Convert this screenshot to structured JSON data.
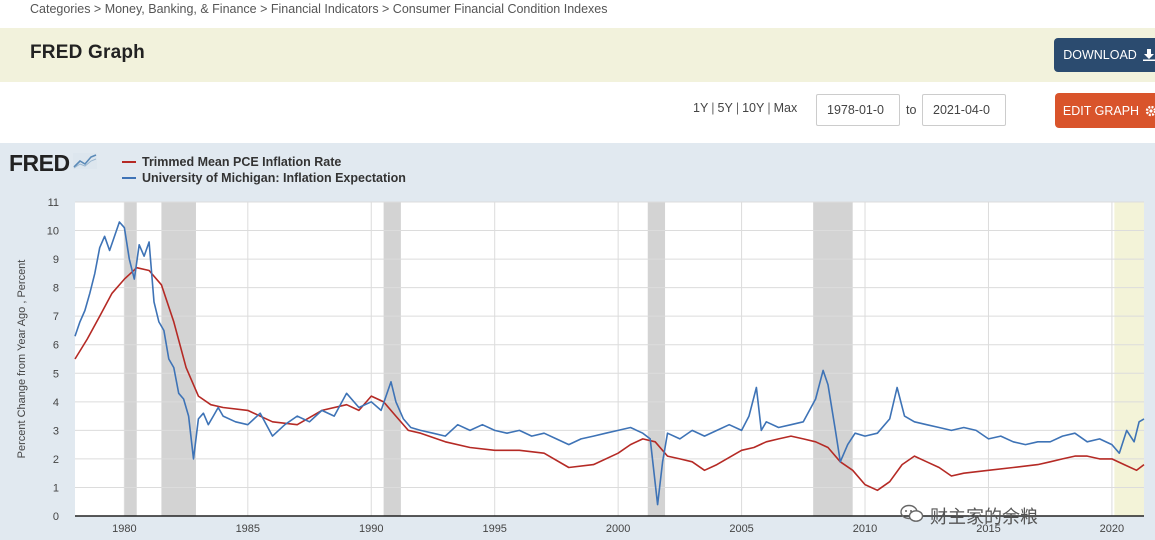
{
  "breadcrumb": "Categories > Money, Banking, & Finance > Financial Indicators > Consumer Financial Condition Indexes",
  "header": {
    "title": "FRED Graph",
    "download_label": "DOWNLOAD",
    "edit_label": "EDIT GRAPH"
  },
  "controls": {
    "range_links": [
      "1Y",
      "5Y",
      "10Y",
      "Max"
    ],
    "start_date": "1978-01-0",
    "to_label": "to",
    "end_date": "2021-04-0"
  },
  "logo": {
    "text": "FRED",
    "icon": "chart-line-icon"
  },
  "watermark": {
    "text": "财主家的余粮",
    "icon": "wechat-icon"
  },
  "colors": {
    "accent_dark": "#2b4b6f",
    "accent_orange": "#d9542b",
    "pce": "#b52a25",
    "michigan": "#3e73b6",
    "recession": "#d3d3d3",
    "highlight": "#f3f3d8"
  },
  "chart_data": {
    "type": "line",
    "ylabel": "Percent Change from Year Ago , Percent",
    "xlabel": "",
    "ylim": [
      0,
      11
    ],
    "xlim": [
      1978.0,
      2021.3
    ],
    "yticks": [
      0,
      1,
      2,
      3,
      4,
      5,
      6,
      7,
      8,
      9,
      10,
      11
    ],
    "xticks": [
      1980,
      1985,
      1990,
      1995,
      2000,
      2005,
      2010,
      2015,
      2020
    ],
    "grid": true,
    "recessions": [
      [
        1980.0,
        1980.5
      ],
      [
        1981.5,
        1982.9
      ],
      [
        1990.5,
        1991.2
      ],
      [
        2001.2,
        2001.9
      ],
      [
        2007.9,
        2009.5
      ],
      [
        2020.1,
        2021.3
      ]
    ],
    "series": [
      {
        "name": "Trimmed Mean PCE Inflation Rate",
        "color": "#b52a25",
        "x": [
          1978.0,
          1978.5,
          1979.0,
          1979.5,
          1980.0,
          1980.5,
          1981.0,
          1981.5,
          1982.0,
          1982.5,
          1983.0,
          1983.5,
          1984.0,
          1985.0,
          1986.0,
          1987.0,
          1988.0,
          1989.0,
          1989.5,
          1990.0,
          1990.5,
          1991.0,
          1991.5,
          1992.0,
          1993.0,
          1994.0,
          1995.0,
          1996.0,
          1997.0,
          1998.0,
          1999.0,
          2000.0,
          2000.5,
          2001.0,
          2001.5,
          2002.0,
          2002.5,
          2003.0,
          2003.5,
          2004.0,
          2005.0,
          2005.5,
          2006.0,
          2006.5,
          2007.0,
          2007.5,
          2008.0,
          2008.5,
          2009.0,
          2009.5,
          2010.0,
          2010.5,
          2011.0,
          2011.5,
          2012.0,
          2012.5,
          2013.0,
          2013.5,
          2014.0,
          2015.0,
          2016.0,
          2017.0,
          2017.5,
          2018.0,
          2018.5,
          2019.0,
          2019.5,
          2020.0,
          2020.5,
          2021.0,
          2021.3
        ],
        "values": [
          5.5,
          6.2,
          7.0,
          7.8,
          8.3,
          8.7,
          8.6,
          8.1,
          6.8,
          5.2,
          4.2,
          3.9,
          3.8,
          3.7,
          3.3,
          3.2,
          3.7,
          3.9,
          3.7,
          4.2,
          4.0,
          3.5,
          3.0,
          2.9,
          2.6,
          2.4,
          2.3,
          2.3,
          2.2,
          1.7,
          1.8,
          2.2,
          2.5,
          2.7,
          2.6,
          2.1,
          2.0,
          1.9,
          1.6,
          1.8,
          2.3,
          2.4,
          2.6,
          2.7,
          2.8,
          2.7,
          2.6,
          2.4,
          1.9,
          1.6,
          1.1,
          0.9,
          1.2,
          1.8,
          2.1,
          1.9,
          1.7,
          1.4,
          1.5,
          1.6,
          1.7,
          1.8,
          1.9,
          2.0,
          2.1,
          2.1,
          2.0,
          2.0,
          1.8,
          1.6,
          1.8
        ]
      },
      {
        "name": "University of Michigan: Inflation Expectation",
        "color": "#3e73b6",
        "x": [
          1978.0,
          1978.2,
          1978.4,
          1978.6,
          1978.8,
          1979.0,
          1979.2,
          1979.4,
          1979.6,
          1979.8,
          1980.0,
          1980.2,
          1980.4,
          1980.6,
          1980.8,
          1981.0,
          1981.2,
          1981.4,
          1981.6,
          1981.8,
          1982.0,
          1982.2,
          1982.4,
          1982.6,
          1982.8,
          1983.0,
          1983.2,
          1983.4,
          1983.6,
          1983.8,
          1984.0,
          1984.5,
          1985.0,
          1985.5,
          1986.0,
          1986.5,
          1987.0,
          1987.5,
          1988.0,
          1988.5,
          1989.0,
          1989.5,
          1990.0,
          1990.4,
          1990.8,
          1991.0,
          1991.3,
          1991.6,
          1992.0,
          1992.5,
          1993.0,
          1993.5,
          1994.0,
          1994.5,
          1995.0,
          1995.5,
          1996.0,
          1996.5,
          1997.0,
          1997.5,
          1998.0,
          1998.5,
          1999.0,
          1999.5,
          2000.0,
          2000.5,
          2001.0,
          2001.3,
          2001.6,
          2001.8,
          2002.0,
          2002.5,
          2003.0,
          2003.5,
          2004.0,
          2004.5,
          2005.0,
          2005.3,
          2005.6,
          2005.8,
          2006.0,
          2006.5,
          2007.0,
          2007.5,
          2008.0,
          2008.3,
          2008.5,
          2008.8,
          2009.0,
          2009.3,
          2009.6,
          2010.0,
          2010.5,
          2011.0,
          2011.3,
          2011.6,
          2012.0,
          2012.5,
          2013.0,
          2013.5,
          2014.0,
          2014.5,
          2015.0,
          2015.5,
          2016.0,
          2016.5,
          2017.0,
          2017.5,
          2018.0,
          2018.5,
          2019.0,
          2019.5,
          2020.0,
          2020.3,
          2020.6,
          2020.9,
          2021.1,
          2021.3
        ],
        "values": [
          6.3,
          6.8,
          7.2,
          7.8,
          8.5,
          9.4,
          9.8,
          9.3,
          9.8,
          10.3,
          10.1,
          9.0,
          8.3,
          9.5,
          9.1,
          9.6,
          7.5,
          6.8,
          6.5,
          5.5,
          5.2,
          4.3,
          4.1,
          3.5,
          2.0,
          3.4,
          3.6,
          3.2,
          3.5,
          3.8,
          3.5,
          3.3,
          3.2,
          3.6,
          2.8,
          3.2,
          3.5,
          3.3,
          3.7,
          3.5,
          4.3,
          3.8,
          4.0,
          3.7,
          4.7,
          4.0,
          3.4,
          3.1,
          3.0,
          2.9,
          2.8,
          3.2,
          3.0,
          3.2,
          3.0,
          2.9,
          3.0,
          2.8,
          2.9,
          2.7,
          2.5,
          2.7,
          2.8,
          2.9,
          3.0,
          3.1,
          2.9,
          2.7,
          0.4,
          1.9,
          2.9,
          2.7,
          3.0,
          2.8,
          3.0,
          3.2,
          3.0,
          3.5,
          4.5,
          3.0,
          3.3,
          3.1,
          3.2,
          3.3,
          4.1,
          5.1,
          4.6,
          3.0,
          1.9,
          2.5,
          2.9,
          2.8,
          2.9,
          3.4,
          4.5,
          3.5,
          3.3,
          3.2,
          3.1,
          3.0,
          3.1,
          3.0,
          2.7,
          2.8,
          2.6,
          2.5,
          2.6,
          2.6,
          2.8,
          2.9,
          2.6,
          2.7,
          2.5,
          2.2,
          3.0,
          2.6,
          3.3,
          3.4
        ]
      }
    ]
  }
}
